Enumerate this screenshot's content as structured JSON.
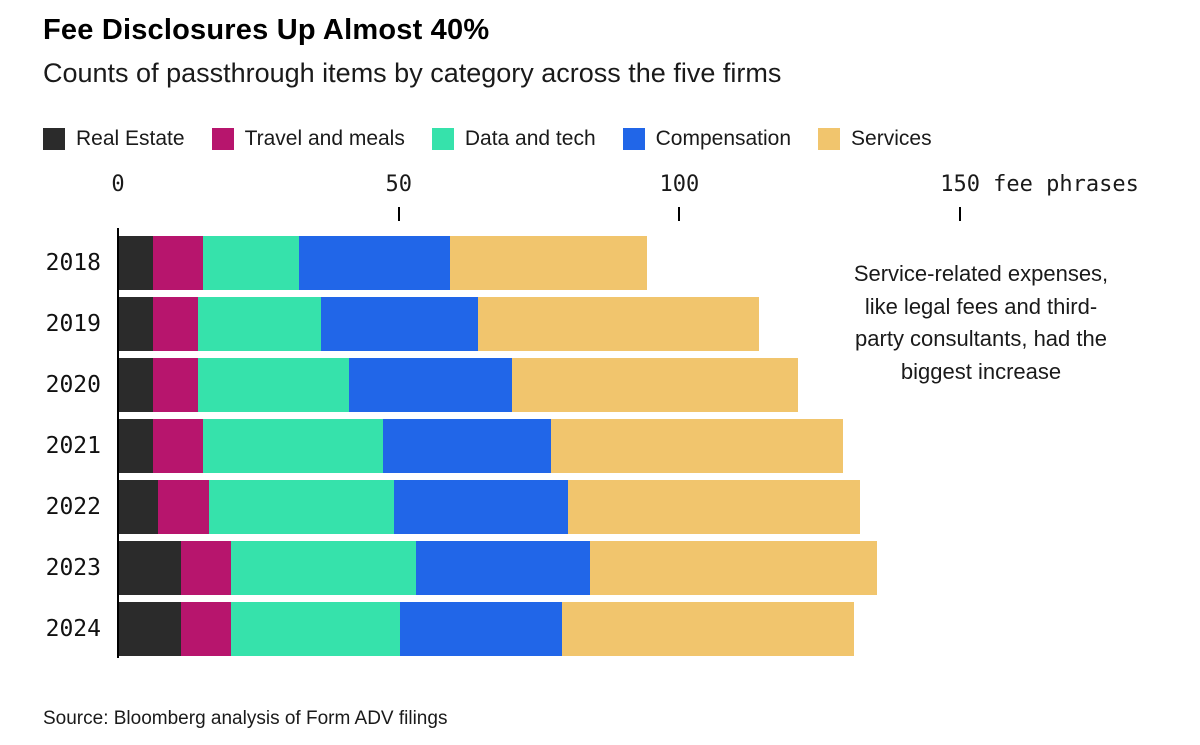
{
  "header": {
    "title": "Fee Disclosures Up Almost 40%",
    "subtitle": "Counts of passthrough items by category across the five firms"
  },
  "legend": [
    {
      "label": "Real Estate",
      "color": "#2b2b2b"
    },
    {
      "label": "Travel and meals",
      "color": "#b7156d"
    },
    {
      "label": "Data and tech",
      "color": "#36e2ab"
    },
    {
      "label": "Compensation",
      "color": "#2166e8"
    },
    {
      "label": "Services",
      "color": "#f1c56d"
    }
  ],
  "annotation": {
    "text": "Service-related expenses, like legal fees and third-party consultants, had the biggest increase"
  },
  "footer": {
    "source": "Source: Bloomberg analysis of Form ADV filings"
  },
  "chart_data": {
    "type": "bar",
    "orientation": "horizontal",
    "stacked": true,
    "title": "Fee Disclosures Up Almost 40%",
    "subtitle": "Counts of passthrough items by category across the five firms",
    "categories": [
      "2018",
      "2019",
      "2020",
      "2021",
      "2022",
      "2023",
      "2024"
    ],
    "series": [
      {
        "name": "Real Estate",
        "color": "#2b2b2b",
        "values": [
          6,
          6,
          6,
          6,
          7,
          11,
          11
        ]
      },
      {
        "name": "Travel and meals",
        "color": "#b7156d",
        "values": [
          9,
          8,
          8,
          9,
          9,
          9,
          9
        ]
      },
      {
        "name": "Data and tech",
        "color": "#36e2ab",
        "values": [
          17,
          22,
          27,
          32,
          33,
          33,
          30
        ]
      },
      {
        "name": "Compensation",
        "color": "#2166e8",
        "values": [
          27,
          28,
          29,
          30,
          31,
          31,
          29
        ]
      },
      {
        "name": "Services",
        "color": "#f1c56d",
        "values": [
          35,
          50,
          51,
          52,
          52,
          51,
          52
        ]
      }
    ],
    "totals": [
      94,
      114,
      121,
      129,
      132,
      135,
      131
    ],
    "xlabel": "fee phrases",
    "ylabel": "",
    "xlim": [
      0,
      150
    ],
    "xticks": [
      0,
      50,
      100,
      150
    ],
    "xtick_unit": "fee phrases",
    "grid": false,
    "legend_position": "top",
    "annotation": "Service-related expenses, like legal fees and third-party consultants, had the biggest increase",
    "source": "Source: Bloomberg analysis of Form ADV filings"
  }
}
